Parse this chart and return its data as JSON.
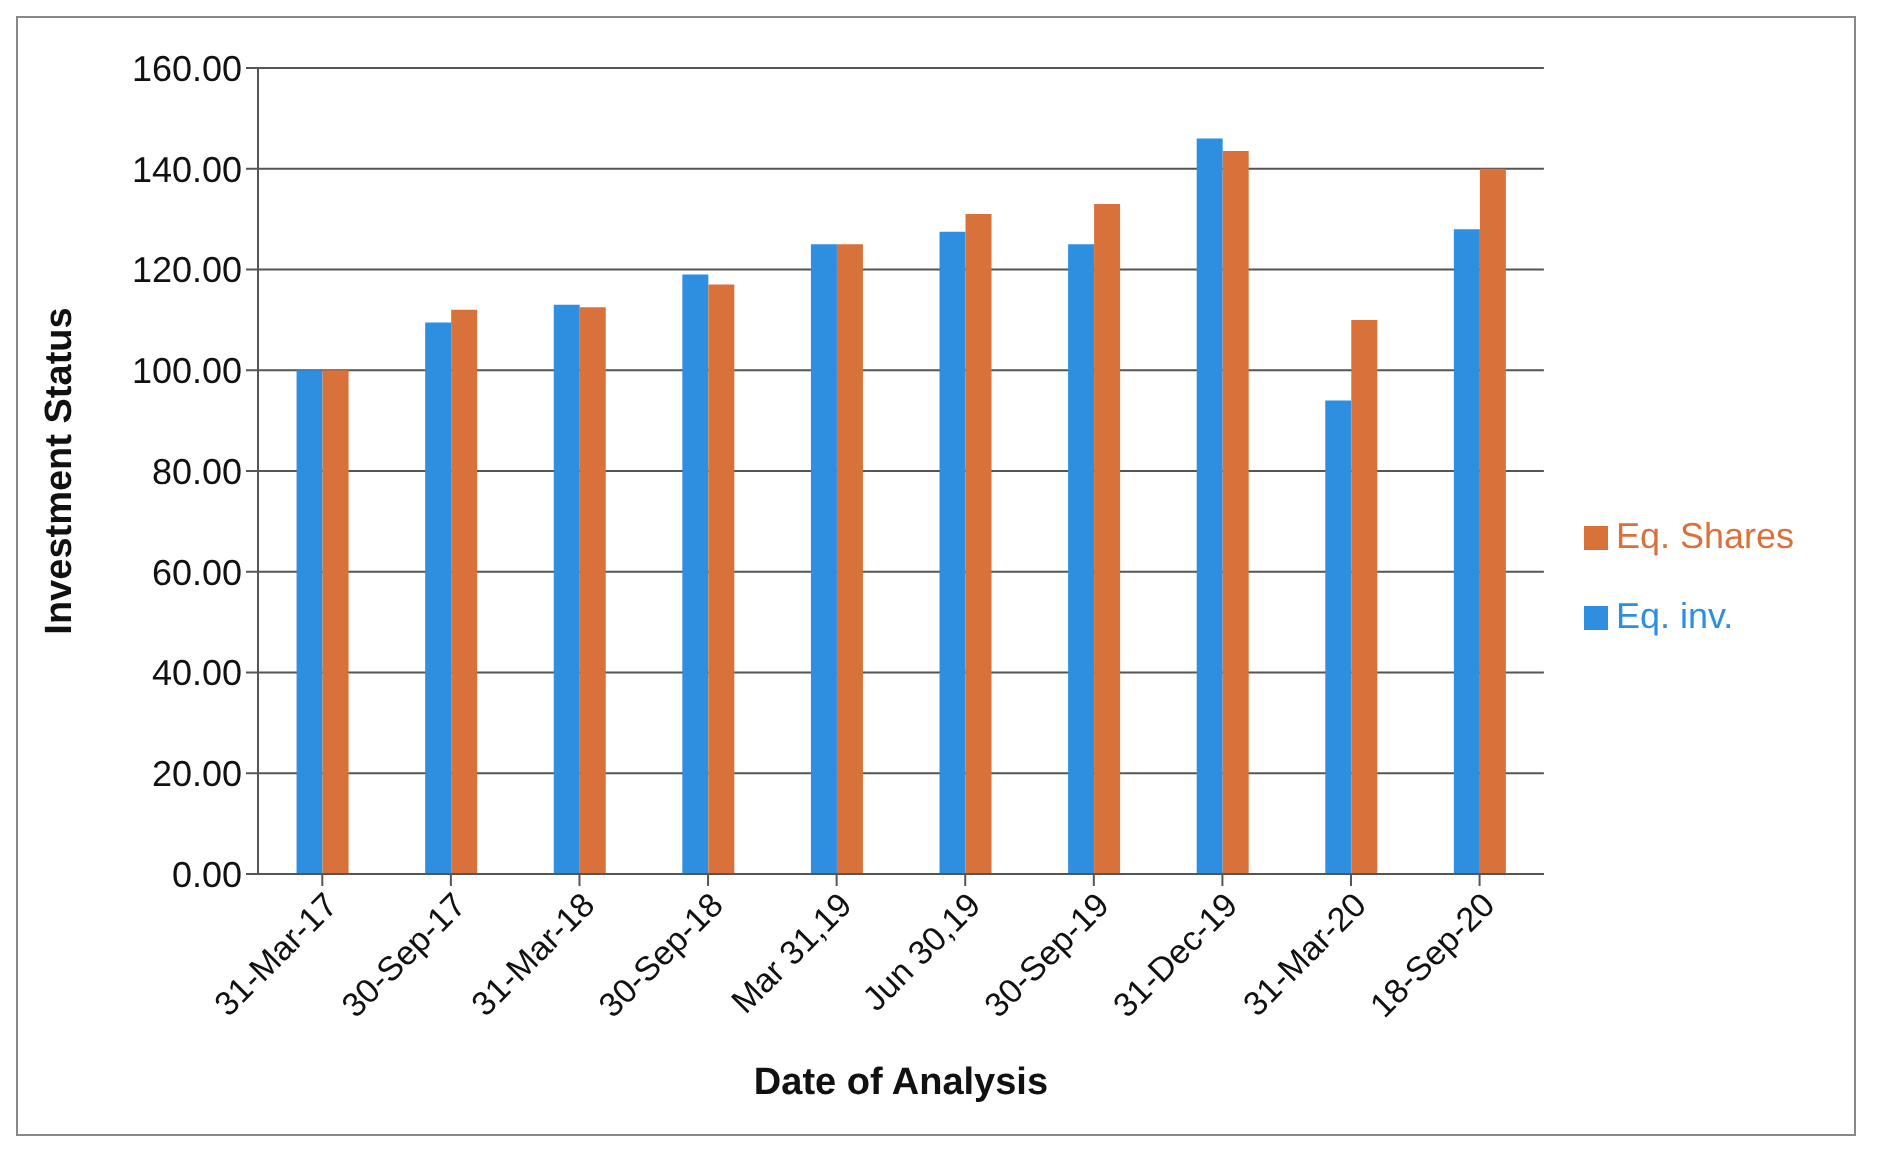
{
  "chart_data": {
    "type": "bar",
    "xlabel": "Date of Analysis",
    "ylabel": "Investment Status",
    "categories": [
      "31-Mar-17",
      "30-Sep-17",
      "31-Mar-18",
      "30-Sep-18",
      "Mar 31,19",
      "Jun 30,19",
      "30-Sep-19",
      "31-Dec-19",
      "31-Mar-20",
      "18-Sep-20"
    ],
    "series": [
      {
        "name": "Eq. inv.",
        "color": "#2e8fe0",
        "values": [
          100,
          109.5,
          113,
          119,
          125,
          127.5,
          125,
          146,
          94,
          128
        ]
      },
      {
        "name": "Eq. Shares",
        "color": "#d9713a",
        "values": [
          100,
          112,
          112.5,
          117,
          125,
          131,
          133,
          143.5,
          110,
          140
        ]
      }
    ],
    "ylim": [
      0,
      160
    ],
    "yticks": [
      {
        "value": 0,
        "label": "0.00"
      },
      {
        "value": 20,
        "label": "20.00"
      },
      {
        "value": 40,
        "label": "40.00"
      },
      {
        "value": 60,
        "label": "60.00"
      },
      {
        "value": 80,
        "label": "80.00"
      },
      {
        "value": 100,
        "label": "100.00"
      },
      {
        "value": 120,
        "label": "120.00"
      },
      {
        "value": 140,
        "label": "140.00"
      },
      {
        "value": 160,
        "label": "160.00"
      }
    ],
    "grid": "y",
    "legend": "right"
  }
}
